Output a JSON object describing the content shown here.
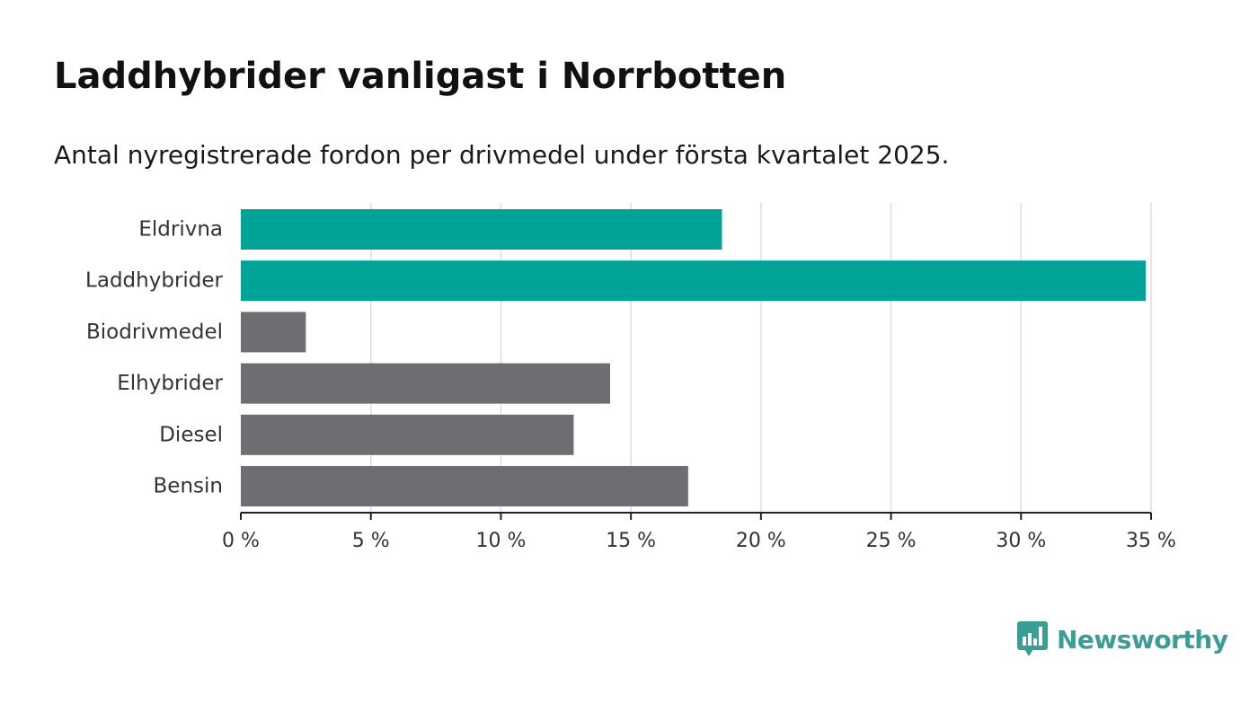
{
  "header": {
    "title": "Laddhybrider vanligast i Norrbotten",
    "subtitle": "Antal nyregistrerade fordon per drivmedel under första kvartalet 2025."
  },
  "brand": {
    "name": "Newsworthy",
    "icon": "bar-chart-speech-bubble-icon",
    "color": "#3a9e96"
  },
  "colors": {
    "highlight": "#00a398",
    "default": "#6e6d72",
    "grid": "#dddddd",
    "axis": "#222222"
  },
  "chart_data": {
    "type": "bar",
    "orientation": "horizontal",
    "categories": [
      "Eldrivna",
      "Laddhybrider",
      "Biodrivmedel",
      "Elhybrider",
      "Diesel",
      "Bensin"
    ],
    "values": [
      18.5,
      34.8,
      2.5,
      14.2,
      12.8,
      17.2
    ],
    "highlighted": [
      true,
      true,
      false,
      false,
      false,
      false
    ],
    "x_ticks": [
      0,
      5,
      10,
      15,
      20,
      25,
      30,
      35
    ],
    "x_tick_labels": [
      "0 %",
      "5 %",
      "10 %",
      "15 %",
      "20 %",
      "25 %",
      "30 %",
      "35 %"
    ],
    "xlim": [
      0,
      35
    ],
    "grid": true,
    "legend": "none"
  }
}
